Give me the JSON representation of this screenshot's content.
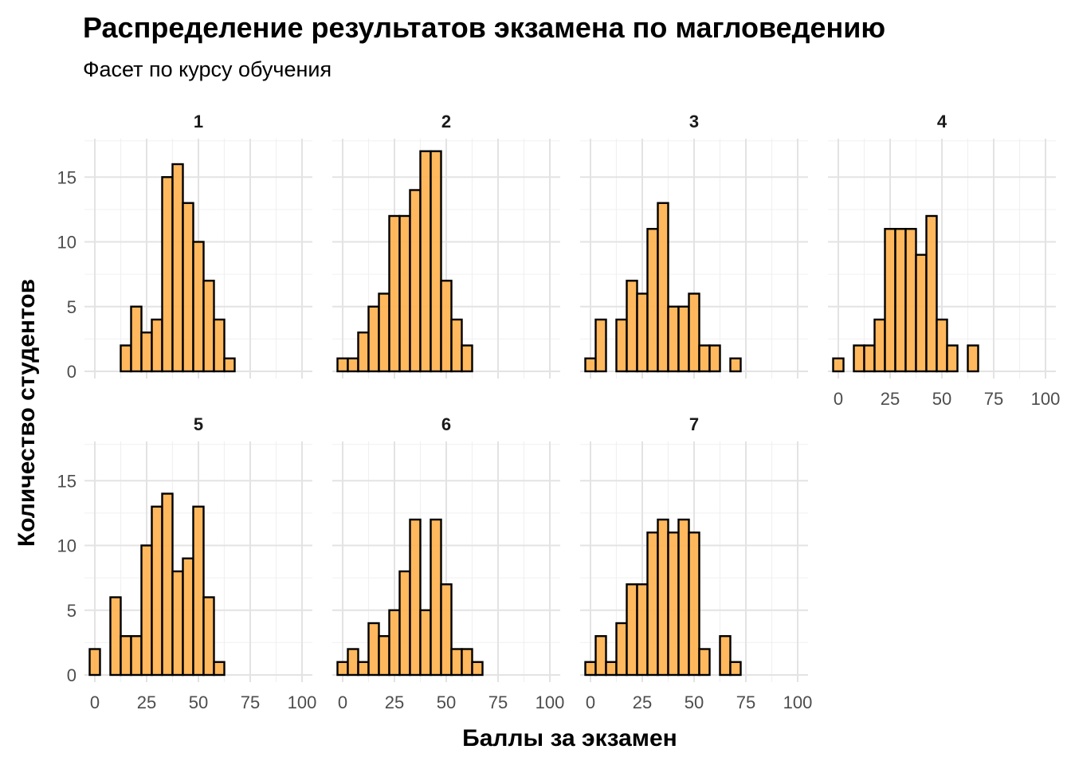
{
  "chart_data": {
    "type": "bar",
    "title": "Распределение результатов экзамена по магловедению",
    "subtitle": "Фасет по курсу обучения",
    "xlabel": "Баллы за экзамен",
    "ylabel": "Количество студентов",
    "bin_width": 5,
    "x_bin_centers": [
      0,
      5,
      10,
      15,
      20,
      25,
      30,
      35,
      40,
      45,
      50,
      55,
      60,
      65,
      70,
      75,
      80,
      85,
      90,
      95,
      100
    ],
    "xlim": [
      -5,
      105
    ],
    "ylim": [
      0,
      18
    ],
    "x_ticks": [
      0,
      25,
      50,
      75,
      100
    ],
    "x_tick_labels": [
      "0",
      "25",
      "50",
      "75",
      "100"
    ],
    "y_ticks": [
      0,
      5,
      10,
      15
    ],
    "y_tick_labels": [
      "0",
      "5",
      "10",
      "15"
    ],
    "grid": true,
    "bar_fill": "#FFB24F",
    "bar_stroke": "#000000",
    "facets": [
      {
        "label": "1",
        "counts": [
          0,
          0,
          0,
          2,
          5,
          3,
          4,
          15,
          16,
          13,
          10,
          7,
          4,
          1,
          0,
          0,
          0,
          0,
          0,
          0,
          0
        ]
      },
      {
        "label": "2",
        "counts": [
          1,
          1,
          3,
          5,
          6,
          12,
          12,
          14,
          17,
          17,
          7,
          4,
          2,
          0,
          0,
          0,
          0,
          0,
          0,
          0,
          0
        ]
      },
      {
        "label": "3",
        "counts": [
          1,
          4,
          0,
          4,
          7,
          6,
          11,
          13,
          5,
          5,
          6,
          2,
          2,
          0,
          1,
          0,
          0,
          0,
          0,
          0,
          0
        ]
      },
      {
        "label": "4",
        "counts": [
          1,
          0,
          2,
          2,
          4,
          11,
          11,
          11,
          9,
          12,
          4,
          2,
          0,
          2,
          0,
          0,
          0,
          0,
          0,
          0,
          0
        ]
      },
      {
        "label": "5",
        "counts": [
          2,
          0,
          6,
          3,
          3,
          10,
          13,
          14,
          8,
          9,
          13,
          6,
          1,
          0,
          0,
          0,
          0,
          0,
          0,
          0,
          0
        ]
      },
      {
        "label": "6",
        "counts": [
          1,
          2,
          1,
          4,
          3,
          5,
          8,
          12,
          5,
          12,
          7,
          2,
          2,
          1,
          0,
          0,
          0,
          0,
          0,
          0,
          0
        ]
      },
      {
        "label": "7",
        "counts": [
          1,
          3,
          1,
          4,
          7,
          7,
          11,
          12,
          11,
          12,
          11,
          2,
          0,
          3,
          1,
          0,
          0,
          0,
          0,
          0,
          0
        ]
      }
    ]
  }
}
